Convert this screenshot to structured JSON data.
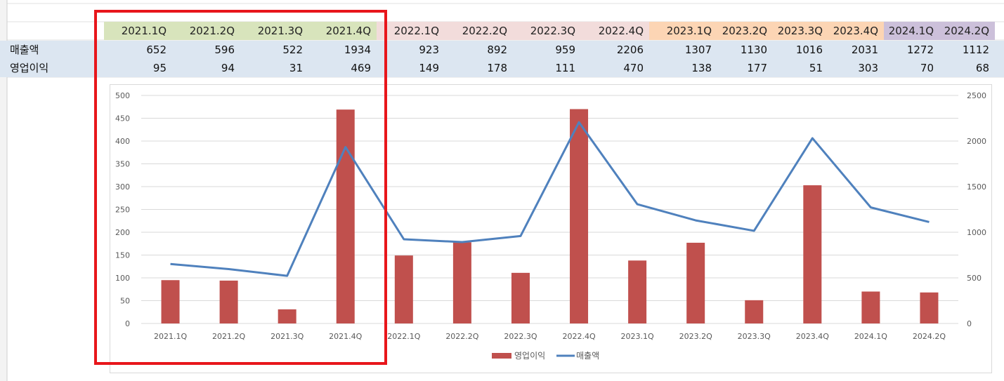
{
  "spreadsheet": {
    "quarters": [
      {
        "label": "2021.1Q",
        "color": "#d8e4bc"
      },
      {
        "label": "2021.2Q",
        "color": "#d8e4bc"
      },
      {
        "label": "2021.3Q",
        "color": "#d8e4bc"
      },
      {
        "label": "2021.4Q",
        "color": "#d8e4bc"
      },
      {
        "label": "2022.1Q",
        "color": "#f2dcdb"
      },
      {
        "label": "2022.2Q",
        "color": "#f2dcdb"
      },
      {
        "label": "2022.3Q",
        "color": "#f2dcdb"
      },
      {
        "label": "2022.4Q",
        "color": "#f2dcdb"
      },
      {
        "label": "2023.1Q",
        "color": "#fcd5b4"
      },
      {
        "label": "2023.2Q",
        "color": "#fcd5b4"
      },
      {
        "label": "2023.3Q",
        "color": "#fcd5b4"
      },
      {
        "label": "2023.4Q",
        "color": "#fcd5b4"
      },
      {
        "label": "2024.1Q",
        "color": "#ccc0da"
      },
      {
        "label": "2024.2Q",
        "color": "#ccc0da"
      }
    ],
    "rows": [
      {
        "label": "매출액",
        "values": [
          "652",
          "596",
          "522",
          "1934",
          "923",
          "892",
          "959",
          "2206",
          "1307",
          "1130",
          "1016",
          "2031",
          "1272",
          "1112"
        ]
      },
      {
        "label": "영업이익",
        "values": [
          "95",
          "94",
          "31",
          "469",
          "149",
          "178",
          "111",
          "470",
          "138",
          "177",
          "51",
          "303",
          "70",
          "68"
        ]
      }
    ],
    "row_fill": "#dce6f1"
  },
  "chart_data": {
    "type": "bar",
    "categories": [
      "2021.1Q",
      "2021.2Q",
      "2021.3Q",
      "2021.4Q",
      "2022.1Q",
      "2022.2Q",
      "2022.3Q",
      "2022.4Q",
      "2023.1Q",
      "2023.2Q",
      "2023.3Q",
      "2023.4Q",
      "2024.1Q",
      "2024.2Q"
    ],
    "series": [
      {
        "name": "영업이익",
        "type": "bar",
        "axis": "left",
        "color": "#c0504d",
        "values": [
          95,
          94,
          31,
          469,
          149,
          178,
          111,
          470,
          138,
          177,
          51,
          303,
          70,
          68
        ]
      },
      {
        "name": "매출액",
        "type": "line",
        "axis": "right",
        "color": "#4f81bd",
        "values": [
          652,
          596,
          522,
          1934,
          923,
          892,
          959,
          2206,
          1307,
          1130,
          1016,
          2031,
          1272,
          1112
        ]
      }
    ],
    "left_axis": {
      "min": 0,
      "max": 500,
      "ticks": [
        0,
        50,
        100,
        150,
        200,
        250,
        300,
        350,
        400,
        450,
        500
      ]
    },
    "right_axis": {
      "min": 0,
      "max": 2500,
      "ticks": [
        0,
        500,
        1000,
        1500,
        2000,
        2500
      ]
    },
    "grid": true,
    "legend": "bottom"
  },
  "highlight": {
    "color": "#e8161b"
  }
}
